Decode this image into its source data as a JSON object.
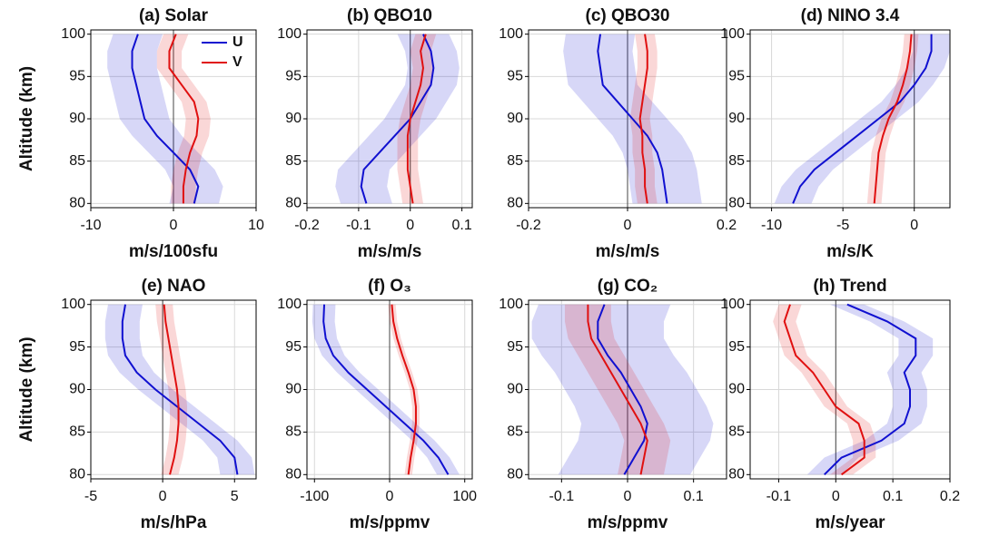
{
  "chart_data": [
    {
      "type": "line",
      "title": "(a)  Solar",
      "xlabel": "m/s/100sfu",
      "ylabel": "Altitude (km)",
      "legend": "upper right",
      "y": [
        80,
        82,
        84,
        86,
        88,
        90,
        92,
        94,
        96,
        98,
        100
      ],
      "series": [
        {
          "name": "U",
          "color": "#1010d0",
          "values": [
            2.5,
            3,
            2,
            0,
            -2,
            -3.5,
            -4,
            -4.5,
            -5,
            -5,
            -4.3
          ],
          "errors": [
            3,
            3,
            3,
            3,
            3,
            3,
            3,
            3,
            3,
            3,
            3
          ]
        },
        {
          "name": "V",
          "color": "#e01010",
          "values": [
            1.2,
            1.2,
            1.5,
            2,
            2.8,
            3,
            2.5,
            1,
            -0.5,
            -0.5,
            0.3
          ],
          "errors": [
            1.5,
            1.5,
            1.5,
            1.5,
            1.5,
            1.5,
            1.5,
            1.5,
            1.5,
            1.5,
            1.5
          ]
        }
      ],
      "xlim": [
        -10,
        10
      ],
      "xticks": [
        -10,
        0,
        10
      ],
      "ylim": [
        79.5,
        100.5
      ],
      "yticks": [
        80,
        85,
        90,
        95,
        100
      ],
      "grid": true
    },
    {
      "type": "line",
      "title": "(b)  QBO10",
      "xlabel": "m/s/m/s",
      "y": [
        80,
        82,
        84,
        86,
        88,
        90,
        92,
        94,
        96,
        98,
        100
      ],
      "series": [
        {
          "color": "#1010d0",
          "values": [
            -0.085,
            -0.095,
            -0.09,
            -0.06,
            -0.03,
            0,
            0.02,
            0.04,
            0.045,
            0.04,
            0.025
          ],
          "errors": [
            0.05,
            0.05,
            0.05,
            0.05,
            0.05,
            0.05,
            0.05,
            0.05,
            0.05,
            0.05,
            0.05
          ]
        },
        {
          "color": "#e01010",
          "values": [
            0.005,
            0,
            -0.005,
            -0.005,
            -0.005,
            0,
            0.01,
            0.02,
            0.025,
            0.02,
            0.03
          ],
          "errors": [
            0.02,
            0.02,
            0.02,
            0.02,
            0.02,
            0.02,
            0.02,
            0.02,
            0.02,
            0.02,
            0.02
          ]
        }
      ],
      "xlim": [
        -0.2,
        0.12
      ],
      "xticks": [
        -0.2,
        -0.1,
        0,
        0.1
      ],
      "ylim": [
        79.5,
        100.5
      ],
      "yticks": [
        80,
        85,
        90,
        95,
        100
      ],
      "grid": true
    },
    {
      "type": "line",
      "title": "(c)  QBO30",
      "xlabel": "m/s/m/s",
      "y": [
        80,
        82,
        84,
        86,
        88,
        90,
        92,
        94,
        96,
        98,
        100
      ],
      "series": [
        {
          "color": "#1010d0",
          "values": [
            0.08,
            0.075,
            0.07,
            0.06,
            0.04,
            0.01,
            -0.02,
            -0.05,
            -0.055,
            -0.06,
            -0.055
          ],
          "errors": [
            0.07,
            0.07,
            0.07,
            0.07,
            0.07,
            0.07,
            0.07,
            0.07,
            0.07,
            0.07,
            0.07
          ]
        },
        {
          "color": "#e01010",
          "values": [
            0.04,
            0.035,
            0.035,
            0.03,
            0.03,
            0.025,
            0.03,
            0.035,
            0.04,
            0.04,
            0.035
          ],
          "errors": [
            0.02,
            0.02,
            0.02,
            0.02,
            0.02,
            0.02,
            0.02,
            0.02,
            0.02,
            0.02,
            0.02
          ]
        }
      ],
      "xlim": [
        -0.2,
        0.2
      ],
      "xticks": [
        -0.2,
        0,
        0.2
      ],
      "ylim": [
        79.5,
        100.5
      ],
      "yticks": [
        80,
        85,
        90,
        95,
        100
      ],
      "grid": true
    },
    {
      "type": "line",
      "title": "(d)  NINO 3.4",
      "xlabel": "m/s/K",
      "y": [
        80,
        82,
        84,
        86,
        88,
        90,
        92,
        94,
        96,
        98,
        100
      ],
      "series": [
        {
          "color": "#1010d0",
          "values": [
            -8.5,
            -8,
            -7,
            -5.5,
            -4,
            -2.5,
            -1,
            0,
            0.8,
            1.2,
            1.2
          ],
          "errors": [
            1.3,
            1.3,
            1.3,
            1.3,
            1.3,
            1.3,
            1.3,
            1.3,
            1.3,
            1.3,
            1.3
          ]
        },
        {
          "color": "#e01010",
          "values": [
            -2.8,
            -2.7,
            -2.6,
            -2.5,
            -2.2,
            -1.8,
            -1.2,
            -0.8,
            -0.5,
            -0.3,
            -0.2
          ],
          "errors": [
            0.5,
            0.5,
            0.5,
            0.5,
            0.5,
            0.5,
            0.5,
            0.5,
            0.5,
            0.5,
            0.5
          ]
        }
      ],
      "xlim": [
        -11.5,
        2.5
      ],
      "xticks": [
        -10,
        -5,
        0
      ],
      "ylim": [
        79.5,
        100.5
      ],
      "yticks": [
        80,
        85,
        90,
        95,
        100
      ],
      "grid": true
    },
    {
      "type": "line",
      "title": "(e)  NAO",
      "xlabel": "m/s/hPa",
      "ylabel": "Altitude (km)",
      "y": [
        80,
        82,
        84,
        86,
        88,
        90,
        92,
        94,
        96,
        98,
        100
      ],
      "series": [
        {
          "color": "#1010d0",
          "values": [
            5.2,
            5,
            4,
            2.5,
            1,
            -0.5,
            -1.8,
            -2.6,
            -2.8,
            -2.8,
            -2.6
          ],
          "errors": [
            1.2,
            1.2,
            1.2,
            1.2,
            1.2,
            1.2,
            1.2,
            1.2,
            1.2,
            1.2,
            1.2
          ]
        },
        {
          "color": "#e01010",
          "values": [
            0.5,
            0.8,
            1,
            1.1,
            1.1,
            1,
            0.8,
            0.6,
            0.4,
            0.2,
            0.1
          ],
          "errors": [
            0.6,
            0.6,
            0.6,
            0.6,
            0.6,
            0.6,
            0.6,
            0.6,
            0.6,
            0.6,
            0.6
          ]
        }
      ],
      "xlim": [
        -5,
        6.5
      ],
      "xticks": [
        -5,
        0,
        5
      ],
      "ylim": [
        79.5,
        100.5
      ],
      "yticks": [
        80,
        85,
        90,
        95,
        100
      ],
      "grid": true
    },
    {
      "type": "line",
      "title": "(f)  O₃",
      "xlabel": "m/s/ppmv",
      "y": [
        80,
        82,
        84,
        86,
        88,
        90,
        92,
        94,
        96,
        98,
        100
      ],
      "series": [
        {
          "color": "#1010d0",
          "values": [
            78,
            65,
            45,
            20,
            -5,
            -30,
            -55,
            -75,
            -85,
            -88,
            -87
          ],
          "errors": [
            15,
            15,
            15,
            15,
            15,
            15,
            15,
            15,
            15,
            15,
            15
          ]
        },
        {
          "color": "#e01010",
          "values": [
            25,
            28,
            32,
            35,
            35,
            32,
            25,
            17,
            10,
            5,
            3
          ],
          "errors": [
            5,
            5,
            5,
            5,
            5,
            5,
            5,
            5,
            5,
            5,
            5
          ]
        }
      ],
      "xlim": [
        -110,
        110
      ],
      "xticks": [
        -100,
        0,
        100
      ],
      "ylim": [
        79.5,
        100.5
      ],
      "yticks": [
        80,
        85,
        90,
        95,
        100
      ],
      "grid": true
    },
    {
      "type": "line",
      "title": "(g)  CO₂",
      "xlabel": "m/s/ppmv",
      "y": [
        80,
        82,
        84,
        86,
        88,
        90,
        92,
        94,
        96,
        98,
        100
      ],
      "series": [
        {
          "color": "#1010d0",
          "values": [
            -0.005,
            0.01,
            0.025,
            0.03,
            0.02,
            0.005,
            -0.01,
            -0.03,
            -0.045,
            -0.045,
            -0.035
          ],
          "errors": [
            0.1,
            0.1,
            0.1,
            0.1,
            0.1,
            0.1,
            0.1,
            0.1,
            0.1,
            0.1,
            0.1
          ]
        },
        {
          "color": "#e01010",
          "values": [
            0.02,
            0.025,
            0.03,
            0.02,
            0.005,
            -0.01,
            -0.025,
            -0.04,
            -0.055,
            -0.06,
            -0.06
          ],
          "errors": [
            0.035,
            0.035,
            0.035,
            0.035,
            0.035,
            0.035,
            0.035,
            0.035,
            0.035,
            0.035,
            0.035
          ]
        }
      ],
      "xlim": [
        -0.15,
        0.15
      ],
      "xticks": [
        -0.1,
        0,
        0.1
      ],
      "ylim": [
        79.5,
        100.5
      ],
      "yticks": [
        80,
        85,
        90,
        95,
        100
      ],
      "grid": true
    },
    {
      "type": "line",
      "title": "(h)  Trend",
      "xlabel": "m/s/year",
      "y": [
        80,
        82,
        84,
        86,
        88,
        90,
        92,
        94,
        96,
        98,
        100
      ],
      "series": [
        {
          "color": "#1010d0",
          "values": [
            -0.02,
            0.01,
            0.08,
            0.12,
            0.13,
            0.13,
            0.12,
            0.14,
            0.14,
            0.09,
            0.02
          ],
          "errors": [
            0.03,
            0.03,
            0.03,
            0.03,
            0.03,
            0.03,
            0.03,
            0.03,
            0.03,
            0.03,
            0.03
          ]
        },
        {
          "color": "#e01010",
          "values": [
            0.01,
            0.05,
            0.05,
            0.04,
            0,
            -0.02,
            -0.04,
            -0.07,
            -0.08,
            -0.09,
            -0.08
          ],
          "errors": [
            0.02,
            0.02,
            0.02,
            0.02,
            0.02,
            0.02,
            0.02,
            0.02,
            0.02,
            0.02,
            0.02
          ]
        }
      ],
      "xlim": [
        -0.15,
        0.2
      ],
      "xticks": [
        -0.1,
        0,
        0.1,
        0.2
      ],
      "ylim": [
        79.5,
        100.5
      ],
      "yticks": [
        80,
        85,
        90,
        95,
        100
      ],
      "grid": true
    }
  ]
}
